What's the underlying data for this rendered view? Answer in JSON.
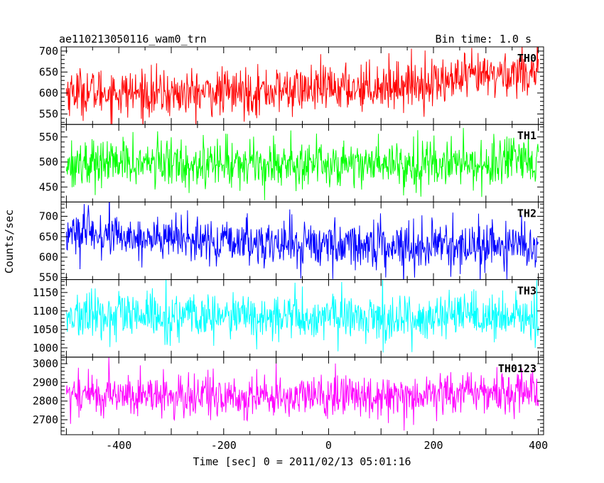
{
  "header": {
    "object_name": "ae110213050116_wam0_trn",
    "bin_time": "Bin time: 1.0 s"
  },
  "chart_data": {
    "type": "line",
    "title": "ae110213050116_wam0_trn",
    "xlabel": "Time [sec] 0 = 2011/02/13 05:01:16",
    "ylabel": "Counts/sec",
    "xlim": [
      -510,
      410
    ],
    "x_ticks": [
      "-400",
      "-200",
      "0",
      "200",
      "400"
    ],
    "grid": false,
    "legend": "none",
    "panels": [
      {
        "name": "TH0",
        "color": "#ff0000",
        "ylim": [
          525,
          710
        ],
        "y_ticks": [
          "550",
          "600",
          "650",
          "700"
        ],
        "trend": {
          "x": [
            -500,
            -300,
            0,
            200,
            400
          ],
          "y": [
            605,
            597,
            610,
            625,
            655
          ]
        },
        "noise_sd": 28
      },
      {
        "name": "TH1",
        "color": "#00ff00",
        "ylim": [
          420,
          575
        ],
        "y_ticks": [
          "450",
          "500",
          "550"
        ],
        "trend": {
          "x": [
            -500,
            400
          ],
          "y": [
            498,
            497
          ]
        },
        "noise_sd": 24
      },
      {
        "name": "TH2",
        "color": "#0000ff",
        "ylim": [
          545,
          735
        ],
        "y_ticks": [
          "550",
          "600",
          "650",
          "700"
        ],
        "trend": {
          "x": [
            -500,
            -200,
            400
          ],
          "y": [
            660,
            635,
            625
          ]
        },
        "noise_sd": 28
      },
      {
        "name": "TH3",
        "color": "#00ffff",
        "ylim": [
          975,
          1185
        ],
        "y_ticks": [
          "1000",
          "1050",
          "1100",
          "1150"
        ],
        "trend": {
          "x": [
            -500,
            400
          ],
          "y": [
            1085,
            1080
          ]
        },
        "noise_sd": 32
      },
      {
        "name": "TH0123",
        "color": "#ff00ff",
        "ylim": [
          2620,
          3035
        ],
        "y_ticks": [
          "2700",
          "2800",
          "2900",
          "3000"
        ],
        "trend": {
          "x": [
            -500,
            -200,
            0,
            400
          ],
          "y": [
            2840,
            2820,
            2825,
            2855
          ]
        },
        "noise_sd": 58
      }
    ]
  }
}
